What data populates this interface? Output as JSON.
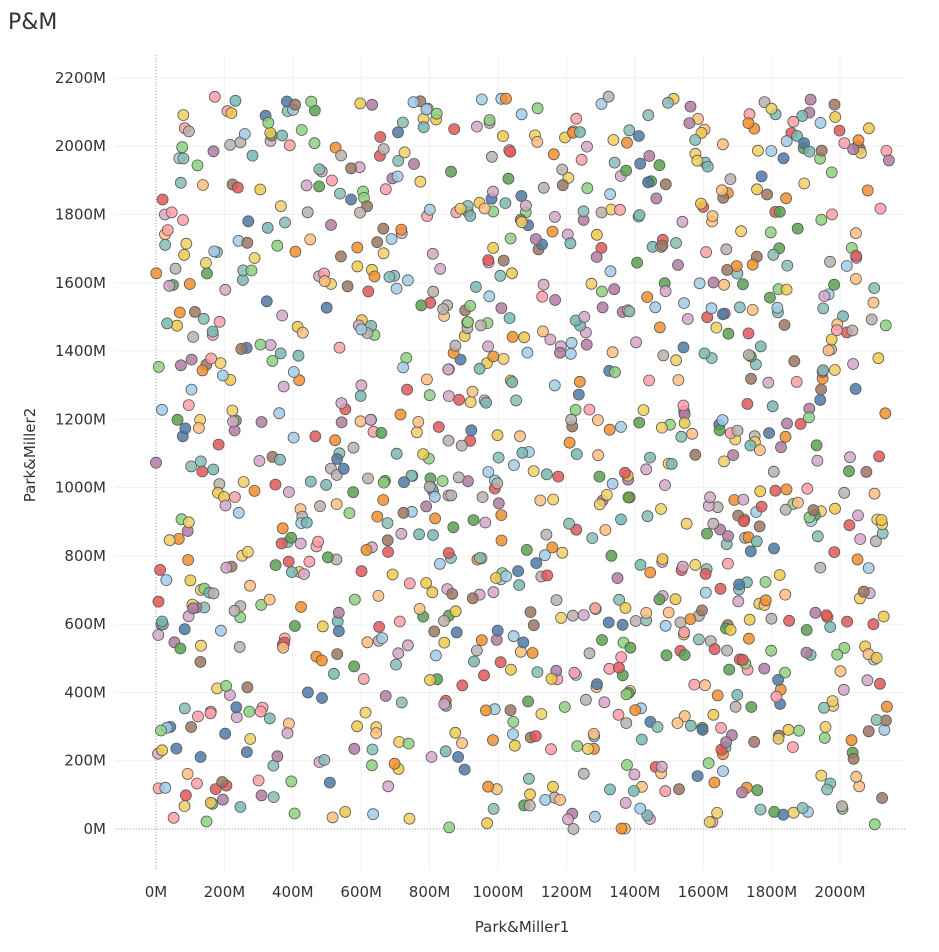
{
  "title": "P&M",
  "chart_data": {
    "type": "scatter",
    "title": "P&M",
    "xlabel": "Park&Miller1",
    "ylabel": "Park&Miller2",
    "xlim": [
      0,
      2147483647
    ],
    "ylim": [
      0,
      2147483647
    ],
    "x_ticks": [
      "0M",
      "200M",
      "400M",
      "600M",
      "800M",
      "1000M",
      "1200M",
      "1400M",
      "1600M",
      "1800M",
      "2000M"
    ],
    "y_ticks": [
      "0M",
      "200M",
      "400M",
      "600M",
      "800M",
      "1000M",
      "1200M",
      "1400M",
      "1600M",
      "1800M",
      "2000M",
      "2200M"
    ],
    "n_points": 1200,
    "generator": "park-miller-minimal-standard",
    "grid": true,
    "palette": [
      "#4e79a7",
      "#f28e2b",
      "#e15759",
      "#76b7b2",
      "#59a14f",
      "#edc948",
      "#b07aa1",
      "#ff9da7",
      "#9c755f",
      "#bab0ac",
      "#a0cbe8",
      "#ffbe7d",
      "#8cd17d",
      "#f1ce63",
      "#d4a6c8",
      "#86bcb6"
    ]
  }
}
